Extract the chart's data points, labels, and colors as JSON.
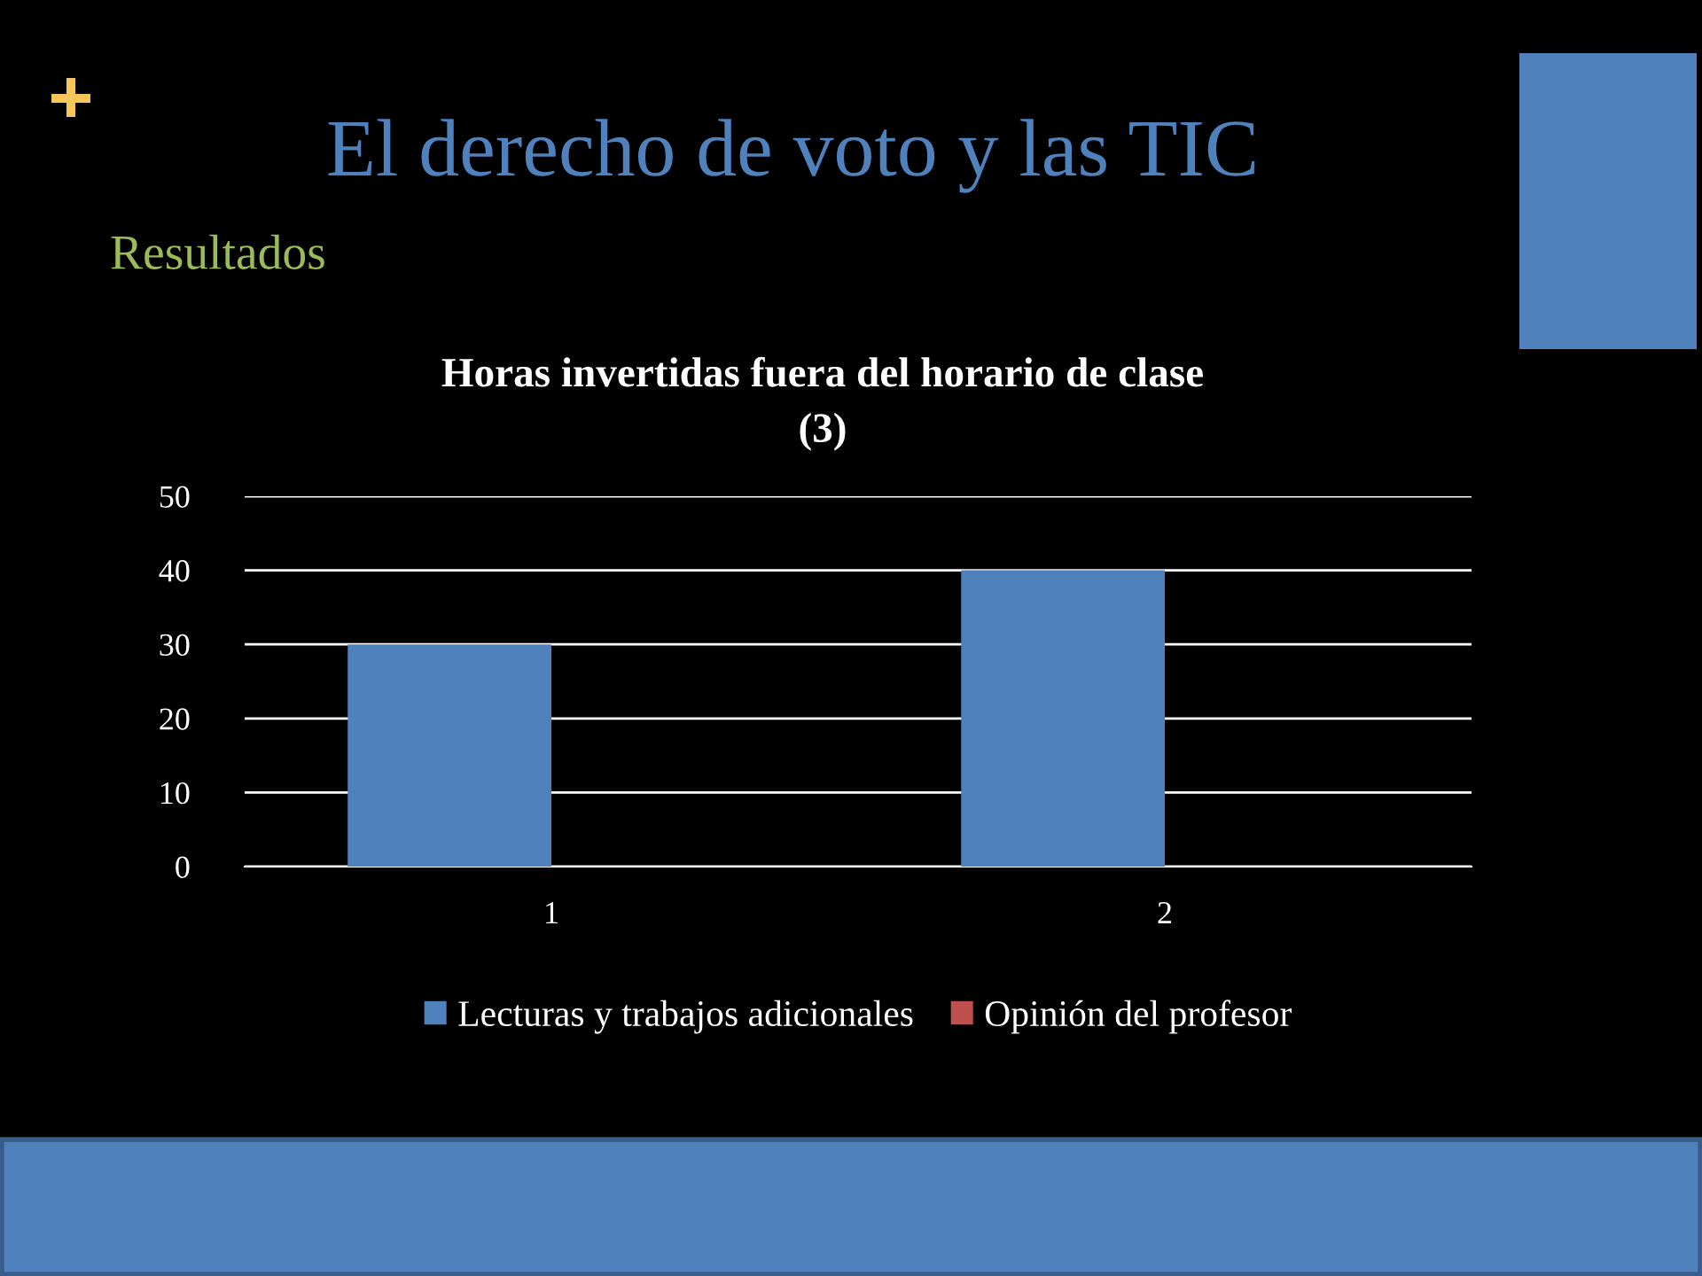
{
  "chart_data": {
    "type": "bar",
    "title": "El derecho de voto y las TIC",
    "subtitle": "Resultados",
    "annotations": [
      "Horas invertidas fuera del horario de clase\n(3)"
    ],
    "categories": [
      "1",
      "2"
    ],
    "series": [
      {
        "name": "Lecturas y trabajos adicionales",
        "color": "#4f81bd",
        "values": [
          30,
          40
        ]
      },
      {
        "name": "Opinión del profesor",
        "color": "#c0504d",
        "values": [
          null,
          null
        ]
      }
    ],
    "ylim": [
      0,
      50
    ],
    "yticks": [
      0,
      10,
      20,
      30,
      40,
      50
    ],
    "grid": "y",
    "legend": "bottom"
  }
}
